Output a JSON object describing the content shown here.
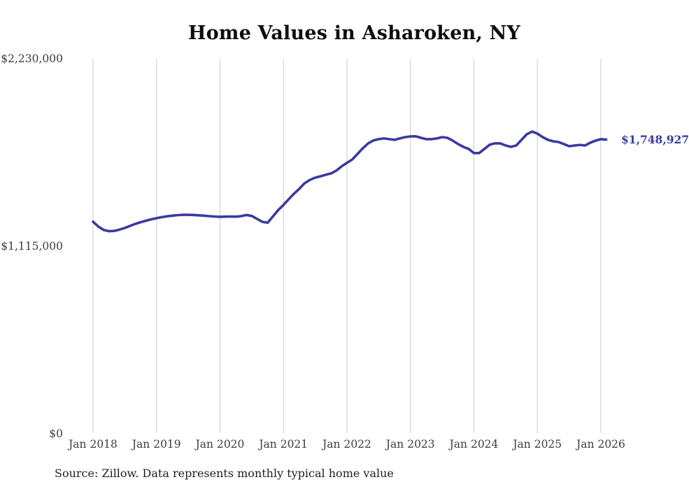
{
  "title": "Home Values in Asharoken, NY",
  "source_note": "Source: Zillow. Data represents monthly typical home value",
  "current_value_label": "$1,748,927",
  "colors": {
    "line": "#3b3a9e",
    "grid": "#cbcbcb",
    "axis_text": "#3d3d3d",
    "title_text": "#0d0d0d",
    "value_label_text": "#3b3a9e",
    "background": "#ffffff"
  },
  "chart_data": {
    "type": "line",
    "title": "Home Values in Asharoken, NY",
    "xlabel": "",
    "ylabel": "",
    "ylim": [
      0,
      2230000
    ],
    "grid": "vertical-only",
    "legend": "none",
    "x_start": "Jan 2018",
    "x_frequency": "monthly",
    "x_tick_labels": [
      "Jan 2018",
      "Jan 2019",
      "Jan 2020",
      "Jan 2021",
      "Jan 2022",
      "Jan 2023",
      "Jan 2024",
      "Jan 2025",
      "Jan 2026"
    ],
    "y_ticks": [
      {
        "label": "$0",
        "value": 0
      },
      {
        "label": "$1,115,000",
        "value": 1115000
      },
      {
        "label": "$2,230,000",
        "value": 2230000
      }
    ],
    "end_label": "$1,748,927",
    "end_value": 1748927,
    "series": [
      {
        "name": "Monthly typical home value",
        "values": [
          1261000,
          1232000,
          1212000,
          1205000,
          1206000,
          1214000,
          1224000,
          1236000,
          1248000,
          1258000,
          1267000,
          1275000,
          1282000,
          1288000,
          1293000,
          1297000,
          1300000,
          1302000,
          1302000,
          1301000,
          1299000,
          1297000,
          1294000,
          1292000,
          1290000,
          1291000,
          1292000,
          1291000,
          1294000,
          1301000,
          1295000,
          1278000,
          1260000,
          1255000,
          1292000,
          1330000,
          1361000,
          1395000,
          1428000,
          1457000,
          1490000,
          1510000,
          1523000,
          1531000,
          1540000,
          1548000,
          1565000,
          1590000,
          1611000,
          1631000,
          1664000,
          1698000,
          1727000,
          1744000,
          1752000,
          1756000,
          1752000,
          1748000,
          1756000,
          1764000,
          1768000,
          1769000,
          1760000,
          1752000,
          1752000,
          1756000,
          1764000,
          1760000,
          1743000,
          1723000,
          1706000,
          1694000,
          1669000,
          1669000,
          1694000,
          1719000,
          1727000,
          1727000,
          1714000,
          1706000,
          1714000,
          1748000,
          1781000,
          1797000,
          1785000,
          1764000,
          1748000,
          1739000,
          1735000,
          1723000,
          1710000,
          1714000,
          1718000,
          1714000,
          1731000,
          1743000,
          1752000,
          1748927
        ]
      }
    ]
  }
}
